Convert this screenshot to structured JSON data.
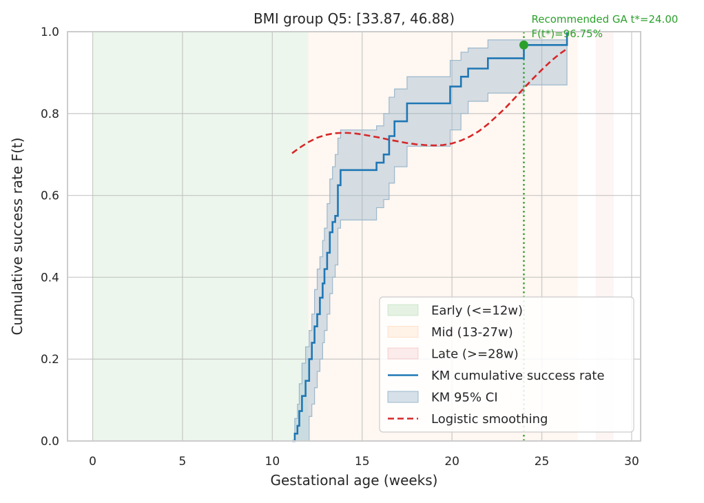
{
  "chart_data": {
    "type": "line",
    "title": "BMI group Q5: [33.87, 46.88)",
    "xlabel": "Gestational age (weeks)",
    "ylabel": "Cumulative success rate F(t)",
    "xlim": [
      -1.4,
      30.5
    ],
    "ylim": [
      0,
      1
    ],
    "xticks": [
      0,
      5,
      10,
      15,
      20,
      25,
      30
    ],
    "yticks": [
      0.0,
      0.2,
      0.4,
      0.6,
      0.8,
      1.0
    ],
    "xtick_labels": [
      "0",
      "5",
      "10",
      "15",
      "20",
      "25",
      "30"
    ],
    "ytick_labels": [
      "0.0",
      "0.2",
      "0.4",
      "0.6",
      "0.8",
      "1.0"
    ],
    "grid": true,
    "legend_position": "lower-right",
    "colors": {
      "early": "#2ca02c",
      "mid": "#ff7f0e",
      "late": "#d62728",
      "km": "#1f77b4",
      "ci": "#9ab8cc",
      "logistic": "#d62728",
      "recommend": "#2ca02c"
    },
    "regions": [
      {
        "key": "early",
        "label": "Early (<=12w)",
        "x0": 0,
        "x1": 12
      },
      {
        "key": "mid",
        "label": "Mid (13-27w)",
        "x0": 12,
        "x1": 27
      },
      {
        "key": "late",
        "label": "Late (>=28w)",
        "x0": 28,
        "x1": 29
      }
    ],
    "km_steps": [
      [
        11.1,
        0.0
      ],
      [
        11.25,
        0.018
      ],
      [
        11.4,
        0.037
      ],
      [
        11.5,
        0.073
      ],
      [
        11.65,
        0.11
      ],
      [
        11.85,
        0.147
      ],
      [
        12.05,
        0.2
      ],
      [
        12.2,
        0.24
      ],
      [
        12.35,
        0.28
      ],
      [
        12.5,
        0.31
      ],
      [
        12.65,
        0.35
      ],
      [
        12.8,
        0.385
      ],
      [
        12.9,
        0.42
      ],
      [
        13.05,
        0.46
      ],
      [
        13.2,
        0.51
      ],
      [
        13.35,
        0.535
      ],
      [
        13.5,
        0.55
      ],
      [
        13.65,
        0.625
      ],
      [
        13.8,
        0.662
      ],
      [
        15.8,
        0.68
      ],
      [
        16.2,
        0.7
      ],
      [
        16.5,
        0.745
      ],
      [
        16.8,
        0.781
      ],
      [
        17.5,
        0.825
      ],
      [
        19.9,
        0.866
      ],
      [
        20.5,
        0.89
      ],
      [
        20.9,
        0.91
      ],
      [
        22.0,
        0.935
      ],
      [
        24.0,
        0.9675
      ],
      [
        26.4,
        1.0
      ]
    ],
    "km_ci": [
      [
        11.1,
        0.0,
        0.0
      ],
      [
        11.25,
        0.0,
        0.055
      ],
      [
        11.4,
        0.0,
        0.09
      ],
      [
        11.5,
        0.0,
        0.14
      ],
      [
        11.65,
        0.0,
        0.19
      ],
      [
        11.85,
        0.0,
        0.23
      ],
      [
        12.05,
        0.06,
        0.27
      ],
      [
        12.2,
        0.09,
        0.31
      ],
      [
        12.35,
        0.13,
        0.37
      ],
      [
        12.5,
        0.17,
        0.42
      ],
      [
        12.65,
        0.2,
        0.45
      ],
      [
        12.8,
        0.24,
        0.49
      ],
      [
        12.9,
        0.27,
        0.52
      ],
      [
        13.05,
        0.31,
        0.58
      ],
      [
        13.2,
        0.36,
        0.64
      ],
      [
        13.35,
        0.4,
        0.67
      ],
      [
        13.5,
        0.43,
        0.7
      ],
      [
        13.65,
        0.52,
        0.74
      ],
      [
        13.8,
        0.54,
        0.76
      ],
      [
        15.8,
        0.57,
        0.77
      ],
      [
        16.2,
        0.59,
        0.8
      ],
      [
        16.5,
        0.63,
        0.84
      ],
      [
        16.8,
        0.67,
        0.86
      ],
      [
        17.5,
        0.72,
        0.89
      ],
      [
        19.9,
        0.76,
        0.93
      ],
      [
        20.5,
        0.8,
        0.95
      ],
      [
        20.9,
        0.83,
        0.96
      ],
      [
        22.0,
        0.85,
        0.98
      ],
      [
        24.0,
        0.87,
        0.98
      ],
      [
        26.4,
        0.87,
        1.0
      ]
    ],
    "logistic": [
      [
        11.1,
        0.703
      ],
      [
        11.5,
        0.716
      ],
      [
        12.0,
        0.73
      ],
      [
        12.5,
        0.741
      ],
      [
        13.0,
        0.748
      ],
      [
        13.5,
        0.752
      ],
      [
        14.0,
        0.753
      ],
      [
        14.5,
        0.752
      ],
      [
        15.0,
        0.749
      ],
      [
        15.5,
        0.745
      ],
      [
        16.0,
        0.741
      ],
      [
        16.5,
        0.736
      ],
      [
        17.0,
        0.732
      ],
      [
        17.5,
        0.728
      ],
      [
        18.0,
        0.725
      ],
      [
        18.5,
        0.723
      ],
      [
        19.0,
        0.722
      ],
      [
        19.5,
        0.723
      ],
      [
        20.0,
        0.727
      ],
      [
        20.5,
        0.734
      ],
      [
        21.0,
        0.744
      ],
      [
        21.5,
        0.757
      ],
      [
        22.0,
        0.774
      ],
      [
        22.5,
        0.794
      ],
      [
        23.0,
        0.815
      ],
      [
        23.5,
        0.838
      ],
      [
        24.0,
        0.862
      ],
      [
        24.5,
        0.885
      ],
      [
        25.0,
        0.907
      ],
      [
        25.5,
        0.928
      ],
      [
        26.0,
        0.946
      ],
      [
        26.4,
        0.958
      ]
    ],
    "recommended": {
      "t": 24.0,
      "F": 0.9675
    },
    "annotation": {
      "line1": "Recommended GA t*=24.00",
      "line2": "F(t*)=96.75%"
    },
    "legend": [
      {
        "key": "early",
        "label": "Early (<=12w)",
        "kind": "patch"
      },
      {
        "key": "mid",
        "label": "Mid (13-27w)",
        "kind": "patch"
      },
      {
        "key": "late",
        "label": "Late (>=28w)",
        "kind": "patch"
      },
      {
        "key": "km",
        "label": "KM cumulative success rate",
        "kind": "line"
      },
      {
        "key": "ci",
        "label": "KM 95% CI",
        "kind": "patch"
      },
      {
        "key": "logistic",
        "label": "Logistic smoothing",
        "kind": "dash"
      }
    ]
  }
}
